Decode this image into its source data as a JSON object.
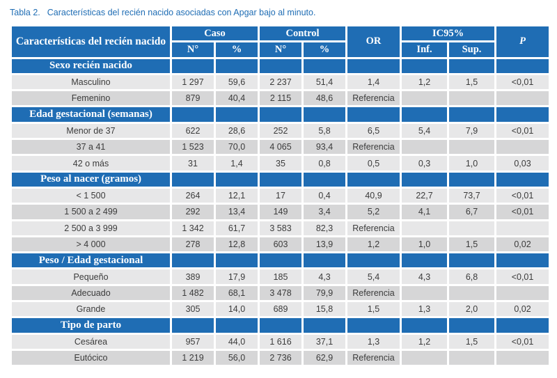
{
  "caption": {
    "label": "Tabla 2.",
    "text": "Características del recién nacido asociadas con Apgar bajo al minuto."
  },
  "header": {
    "characteristics": "Características del recién nacido",
    "caso": "Caso",
    "control": "Control",
    "or": "OR",
    "ic95": "IC95%",
    "p": "P",
    "n": "N°",
    "pct": "%",
    "inf": "Inf.",
    "sup": "Sup."
  },
  "sections": [
    {
      "title": "Sexo recién nacido",
      "rows": [
        [
          "Masculino",
          "1 297",
          "59,6",
          "2 237",
          "51,4",
          "1,4",
          "1,2",
          "1,5",
          "<0,01"
        ],
        [
          "Femenino",
          "879",
          "40,4",
          "2 115",
          "48,6",
          "Referencia",
          "",
          "",
          ""
        ]
      ]
    },
    {
      "title": "Edad gestacional (semanas)",
      "rows": [
        [
          "Menor de 37",
          "622",
          "28,6",
          "252",
          "5,8",
          "6,5",
          "5,4",
          "7,9",
          "<0,01"
        ],
        [
          "37 a 41",
          "1 523",
          "70,0",
          "4 065",
          "93,4",
          "Referencia",
          "",
          "",
          ""
        ],
        [
          "42 o más",
          "31",
          "1,4",
          "35",
          "0,8",
          "0,5",
          "0,3",
          "1,0",
          "0,03"
        ]
      ]
    },
    {
      "title": "Peso al nacer (gramos)",
      "rows": [
        [
          "< 1 500",
          "264",
          "12,1",
          "17",
          "0,4",
          "40,9",
          "22,7",
          "73,7",
          "<0,01"
        ],
        [
          "1 500 a 2 499",
          "292",
          "13,4",
          "149",
          "3,4",
          "5,2",
          "4,1",
          "6,7",
          "<0,01"
        ],
        [
          "2 500 a 3 999",
          "1 342",
          "61,7",
          "3 583",
          "82,3",
          "Referencia",
          "",
          "",
          ""
        ],
        [
          "> 4 000",
          "278",
          "12,8",
          "603",
          "13,9",
          "1,2",
          "1,0",
          "1,5",
          "0,02"
        ]
      ]
    },
    {
      "title": "Peso / Edad gestacional",
      "rows": [
        [
          "Pequeño",
          "389",
          "17,9",
          "185",
          "4,3",
          "5,4",
          "4,3",
          "6,8",
          "<0,01"
        ],
        [
          "Adecuado",
          "1 482",
          "68,1",
          "3 478",
          "79,9",
          "Referencia",
          "",
          "",
          ""
        ],
        [
          "Grande",
          "305",
          "14,0",
          "689",
          "15,8",
          "1,5",
          "1,3",
          "2,0",
          "0,02"
        ]
      ]
    },
    {
      "title": "Tipo de parto",
      "rows": [
        [
          "Cesárea",
          "957",
          "44,0",
          "1 616",
          "37,1",
          "1,3",
          "1,2",
          "1,5",
          "<0,01"
        ],
        [
          "Eutócico",
          "1 219",
          "56,0",
          "2 736",
          "62,9",
          "Referencia",
          "",
          "",
          ""
        ]
      ]
    }
  ],
  "colors": {
    "header_blue": "#1f6db4",
    "row_light": "#e7e7e8",
    "row_dark": "#d6d6d7",
    "text": "#3b3b3b"
  }
}
